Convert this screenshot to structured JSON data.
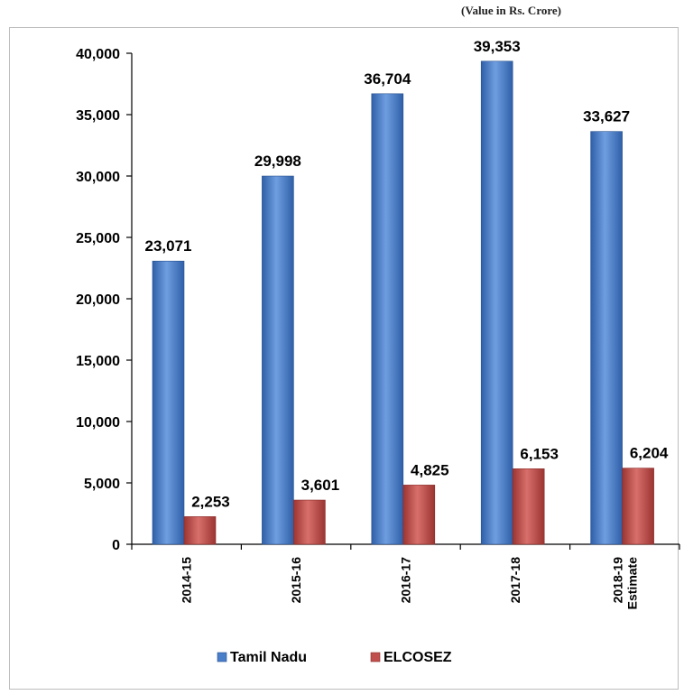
{
  "unit_note": "(Value in Rs. Crore)",
  "chart_data": {
    "type": "bar",
    "categories": [
      [
        "2014-15"
      ],
      [
        "2015-16"
      ],
      [
        "2016-17"
      ],
      [
        "2017-18"
      ],
      [
        "2018-19",
        "Estimate"
      ]
    ],
    "series": [
      {
        "name": "Tamil Nadu",
        "color": "#4a7ec9",
        "values": [
          23071,
          29998,
          36704,
          39353,
          33627
        ],
        "labels": [
          "23,071",
          "29,998",
          "36,704",
          "39,353",
          "33,627"
        ]
      },
      {
        "name": "ELCOSEZ",
        "color": "#c0504d",
        "values": [
          2253,
          3601,
          4825,
          6153,
          6204
        ],
        "labels": [
          "2,253",
          "3,601",
          "4,825",
          "6,153",
          "6,204"
        ]
      }
    ],
    "ylim": [
      0,
      40000
    ],
    "yticks": [
      0,
      5000,
      10000,
      15000,
      20000,
      25000,
      30000,
      35000,
      40000
    ],
    "ytick_labels": [
      "0",
      "5,000",
      "10,000",
      "15,000",
      "20,000",
      "25,000",
      "30,000",
      "35,000",
      "40,000"
    ],
    "xlabel": "",
    "ylabel": "",
    "grid": false,
    "legend_position": "bottom"
  }
}
